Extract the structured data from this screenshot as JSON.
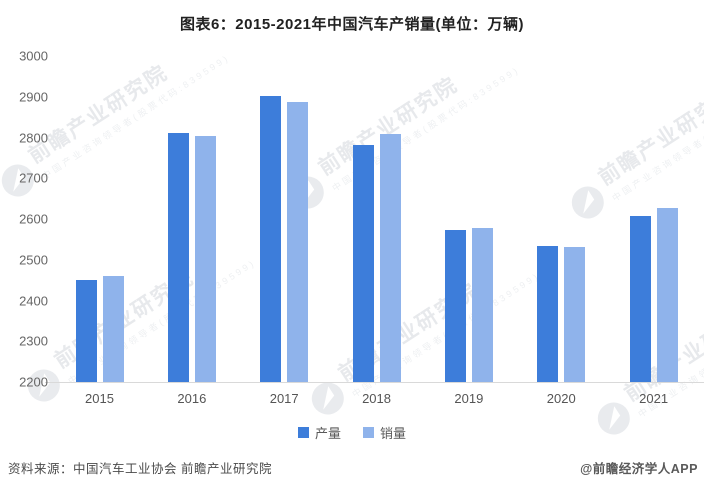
{
  "title": "图表6：2015-2021年中国汽车产销量(单位：万辆)",
  "chart_data": {
    "type": "bar",
    "title": "图表6：2015-2021年中国汽车产销量(单位：万辆)",
    "unit": "万辆",
    "categories": [
      "2015",
      "2016",
      "2017",
      "2018",
      "2019",
      "2020",
      "2021"
    ],
    "series": [
      {
        "key": "production",
        "name": "产量",
        "color": "#3D7DDA",
        "values": [
          2450,
          2812,
          2902,
          2781,
          2572,
          2533,
          2608
        ]
      },
      {
        "key": "sales",
        "name": "销量",
        "color": "#8FB3EB",
        "values": [
          2460,
          2803,
          2888,
          2808,
          2577,
          2531,
          2628
        ]
      }
    ],
    "xlabel": "",
    "ylabel": "",
    "ylim": [
      2200,
      3000
    ],
    "ytick_step": 100,
    "grid": false,
    "legend_position": "bottom"
  },
  "watermark": {
    "text": "前瞻产业研究院",
    "subtext": "中国产业咨询领导者(股票代码:839599)"
  },
  "footer": {
    "source": "资料来源：中国汽车工业协会 前瞻产业研究院",
    "credit": "@前瞻经济学人APP"
  }
}
